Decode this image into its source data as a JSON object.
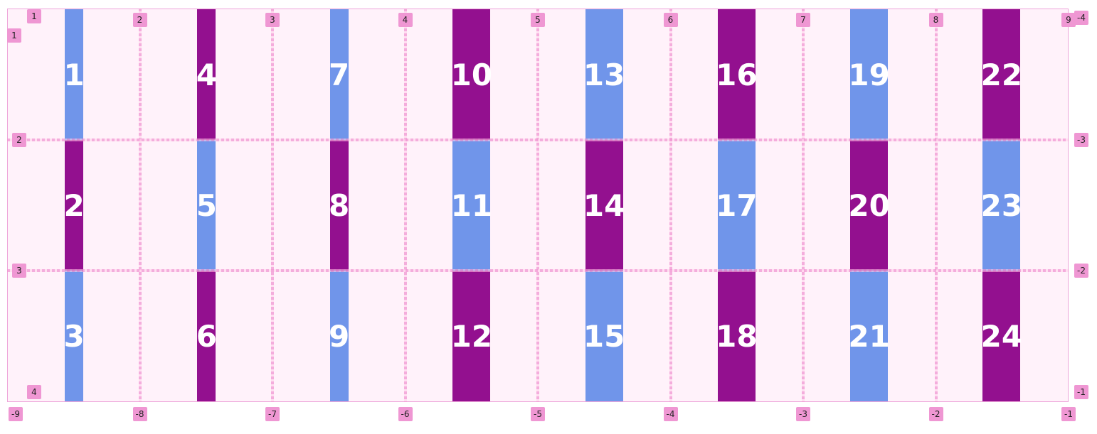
{
  "items": [
    "1",
    "2",
    "3",
    "4",
    "5",
    "6",
    "7",
    "8",
    "9",
    "10",
    "11",
    "12",
    "13",
    "14",
    "15",
    "16",
    "17",
    "18",
    "19",
    "20",
    "21",
    "22",
    "23",
    "24"
  ],
  "column_lines": {
    "positive": [
      "1",
      "2",
      "3",
      "4",
      "5",
      "6",
      "7",
      "8",
      "9"
    ],
    "negative": [
      "-9",
      "-8",
      "-7",
      "-6",
      "-5",
      "-4",
      "-3",
      "-2",
      "-1"
    ]
  },
  "row_lines": {
    "positive": [
      "1",
      "2",
      "3",
      "4"
    ],
    "negative": [
      "-4",
      "-3",
      "-2",
      "-1"
    ]
  }
}
